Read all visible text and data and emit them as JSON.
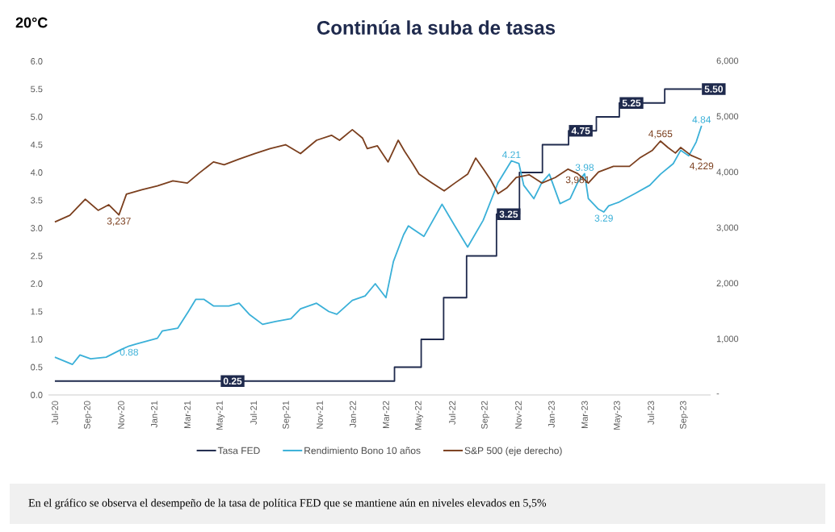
{
  "chart_data": {
    "type": "line",
    "title": "Continúa la suba de tasas",
    "annotations": [
      "20°C",
      "En el gráfico se observa el desempeño de la tasa de política FED que se mantiene aún en niveles elevados en 5,5%"
    ],
    "xlim": [
      "2020-06-20",
      "2023-10-20"
    ],
    "xticks": [
      {
        "value": "2020-07",
        "label": "Jul-20"
      },
      {
        "value": "2020-09",
        "label": "Sep-20"
      },
      {
        "value": "2020-11",
        "label": "Nov-20"
      },
      {
        "value": "2021-01",
        "label": "Jan-21"
      },
      {
        "value": "2021-03",
        "label": "Mar-21"
      },
      {
        "value": "2021-05",
        "label": "May-21"
      },
      {
        "value": "2021-07",
        "label": "Jul-21"
      },
      {
        "value": "2021-09",
        "label": "Sep-21"
      },
      {
        "value": "2021-11",
        "label": "Nov-21"
      },
      {
        "value": "2022-01",
        "label": "Jan-22"
      },
      {
        "value": "2022-03",
        "label": "Mar-22"
      },
      {
        "value": "2022-05",
        "label": "May-22"
      },
      {
        "value": "2022-07",
        "label": "Jul-22"
      },
      {
        "value": "2022-09",
        "label": "Sep-22"
      },
      {
        "value": "2022-11",
        "label": "Nov-22"
      },
      {
        "value": "2023-01",
        "label": "Jan-23"
      },
      {
        "value": "2023-03",
        "label": "Mar-23"
      },
      {
        "value": "2023-05",
        "label": "May-23"
      },
      {
        "value": "2023-07",
        "label": "Jul-23"
      },
      {
        "value": "2023-09",
        "label": "Sep-23"
      }
    ],
    "ylim": [
      0,
      6
    ],
    "yticks": [
      {
        "value": 0,
        "label": "0.0"
      },
      {
        "value": 0.5,
        "label": "0.5"
      },
      {
        "value": 1,
        "label": "1.0"
      },
      {
        "value": 1.5,
        "label": "1.5"
      },
      {
        "value": 2,
        "label": "2.0"
      },
      {
        "value": 2.5,
        "label": "2.5"
      },
      {
        "value": 3,
        "label": "3.0"
      },
      {
        "value": 3.5,
        "label": "3.5"
      },
      {
        "value": 4,
        "label": "4.0"
      },
      {
        "value": 4.5,
        "label": "4.5"
      },
      {
        "value": 5,
        "label": "5.0"
      },
      {
        "value": 5.5,
        "label": "5.5"
      },
      {
        "value": 6,
        "label": "6.0"
      }
    ],
    "y2lim": [
      0,
      6000
    ],
    "y2ticks": [
      {
        "value": 0,
        "label": "-"
      },
      {
        "value": 1000,
        "label": "1,000"
      },
      {
        "value": 2000,
        "label": "2,000"
      },
      {
        "value": 3000,
        "label": "3,000"
      },
      {
        "value": 4000,
        "label": "4,000"
      },
      {
        "value": 5000,
        "label": "5,000"
      },
      {
        "value": 6000,
        "label": "6,000"
      }
    ],
    "legend": "bottom",
    "series": [
      {
        "name": "Tasa FED",
        "type": "step",
        "color": "#1f2a4d",
        "x": [
          "2020-07-01",
          "2021-05-01",
          "2022-03-17",
          "2022-05-05",
          "2022-06-16",
          "2022-07-28",
          "2022-09-22",
          "2022-11-03",
          "2022-12-15",
          "2023-02-02",
          "2023-03-23",
          "2023-05-04",
          "2023-07-27",
          "2023-10-03"
        ],
        "values": [
          0.25,
          0.25,
          0.5,
          1.0,
          1.75,
          2.5,
          3.25,
          4.0,
          4.5,
          4.75,
          5.0,
          5.25,
          5.5,
          5.5
        ],
        "value_labels": [
          null,
          "0.25",
          null,
          null,
          null,
          null,
          "3.25",
          null,
          null,
          "4.75",
          null,
          "5.25",
          null,
          "5.50"
        ]
      },
      {
        "name": "Rendimiento Bono 10 años",
        "color": "#3ab0d8",
        "x": [
          "2020-07-01",
          "2020-08-03",
          "2020-08-17",
          "2020-09-06",
          "2020-10-04",
          "2020-11-02",
          "2020-11-16",
          "2020-11-30",
          "2021-01-07",
          "2021-01-16",
          "2021-02-14",
          "2021-03-03",
          "2021-03-17",
          "2021-04-01",
          "2021-04-19",
          "2021-05-17",
          "2021-06-05",
          "2021-06-24",
          "2021-07-18",
          "2021-08-11",
          "2021-09-09",
          "2021-09-27",
          "2021-10-26",
          "2021-11-18",
          "2021-12-02",
          "2021-12-31",
          "2022-01-24",
          "2022-02-12",
          "2022-03-01",
          "2022-03-15",
          "2022-04-03",
          "2022-04-12",
          "2022-05-10",
          "2022-06-13",
          "2022-07-06",
          "2022-07-30",
          "2022-08-28",
          "2022-09-25",
          "2022-10-19",
          "2022-11-02",
          "2022-11-11",
          "2022-11-30",
          "2022-12-14",
          "2022-12-28",
          "2023-01-17",
          "2023-02-05",
          "2023-02-19",
          "2023-03-01",
          "2023-03-08",
          "2023-03-27",
          "2023-04-06",
          "2023-04-15",
          "2023-05-04",
          "2023-06-02",
          "2023-06-30",
          "2023-07-19",
          "2023-08-12",
          "2023-08-26",
          "2023-09-10",
          "2023-09-24",
          "2023-10-03"
        ],
        "values": [
          0.68,
          0.55,
          0.72,
          0.65,
          0.68,
          0.82,
          0.88,
          0.92,
          1.02,
          1.15,
          1.2,
          1.5,
          1.72,
          1.72,
          1.6,
          1.6,
          1.65,
          1.45,
          1.27,
          1.32,
          1.37,
          1.55,
          1.65,
          1.5,
          1.45,
          1.7,
          1.78,
          2.0,
          1.75,
          2.4,
          2.88,
          3.04,
          2.85,
          3.43,
          3.04,
          2.66,
          3.14,
          3.82,
          4.21,
          4.16,
          3.77,
          3.53,
          3.82,
          3.97,
          3.44,
          3.53,
          3.82,
          3.98,
          3.53,
          3.34,
          3.29,
          3.4,
          3.47,
          3.62,
          3.77,
          3.97,
          4.16,
          4.4,
          4.3,
          4.55,
          4.84
        ],
        "value_labels": [
          null,
          null,
          null,
          null,
          null,
          null,
          "0.88",
          null,
          null,
          null,
          null,
          null,
          null,
          null,
          null,
          null,
          null,
          null,
          null,
          null,
          null,
          null,
          null,
          null,
          null,
          null,
          null,
          null,
          null,
          null,
          null,
          null,
          null,
          null,
          null,
          null,
          null,
          null,
          "4.21",
          null,
          null,
          null,
          null,
          null,
          null,
          null,
          null,
          "3.98",
          null,
          null,
          "3.29",
          null,
          null,
          null,
          null,
          null,
          null,
          null,
          null,
          null,
          "4.84"
        ]
      },
      {
        "name": "S&P 500 (eje derecho)",
        "axis": "y2",
        "color": "#7b3f1e",
        "x": [
          "2020-07-01",
          "2020-07-29",
          "2020-08-27",
          "2020-09-20",
          "2020-10-09",
          "2020-10-28",
          "2020-11-11",
          "2020-12-09",
          "2021-01-07",
          "2021-02-05",
          "2021-03-01",
          "2021-03-22",
          "2021-04-19",
          "2021-05-08",
          "2021-06-05",
          "2021-07-03",
          "2021-08-01",
          "2021-08-30",
          "2021-09-27",
          "2021-10-26",
          "2021-11-23",
          "2021-12-07",
          "2021-12-31",
          "2022-01-19",
          "2022-01-28",
          "2022-02-16",
          "2022-03-05",
          "2022-03-24",
          "2022-04-05",
          "2022-04-20",
          "2022-05-01",
          "2022-05-24",
          "2022-06-17",
          "2022-07-06",
          "2022-07-30",
          "2022-08-14",
          "2022-08-28",
          "2022-09-11",
          "2022-09-25",
          "2022-10-10",
          "2022-10-28",
          "2022-11-21",
          "2022-12-14",
          "2023-01-08",
          "2023-02-01",
          "2023-02-19",
          "2023-03-08",
          "2023-03-27",
          "2023-04-24",
          "2023-05-23",
          "2023-06-11",
          "2023-07-04",
          "2023-07-19",
          "2023-08-02",
          "2023-08-16",
          "2023-08-26",
          "2023-09-14",
          "2023-10-03"
        ],
        "values": [
          3110,
          3230,
          3520,
          3320,
          3420,
          3237,
          3610,
          3690,
          3760,
          3850,
          3810,
          3980,
          4190,
          4140,
          4240,
          4340,
          4430,
          4500,
          4340,
          4580,
          4670,
          4580,
          4770,
          4620,
          4430,
          4480,
          4190,
          4580,
          4380,
          4160,
          3970,
          3820,
          3670,
          3810,
          3970,
          4260,
          4070,
          3870,
          3620,
          3720,
          3910,
          3960,
          3810,
          3910,
          4060,
          3981,
          3810,
          4010,
          4110,
          4110,
          4260,
          4400,
          4565,
          4450,
          4350,
          4450,
          4310,
          4229
        ],
        "value_labels": [
          null,
          null,
          null,
          null,
          null,
          "3,237",
          null,
          null,
          null,
          null,
          null,
          null,
          null,
          null,
          null,
          null,
          null,
          null,
          null,
          null,
          null,
          null,
          null,
          null,
          null,
          null,
          null,
          null,
          null,
          null,
          null,
          null,
          null,
          null,
          null,
          null,
          null,
          null,
          null,
          null,
          null,
          null,
          null,
          null,
          null,
          "3,981",
          null,
          null,
          null,
          null,
          null,
          null,
          "4,565",
          null,
          null,
          null,
          null,
          "4,229"
        ]
      }
    ]
  }
}
